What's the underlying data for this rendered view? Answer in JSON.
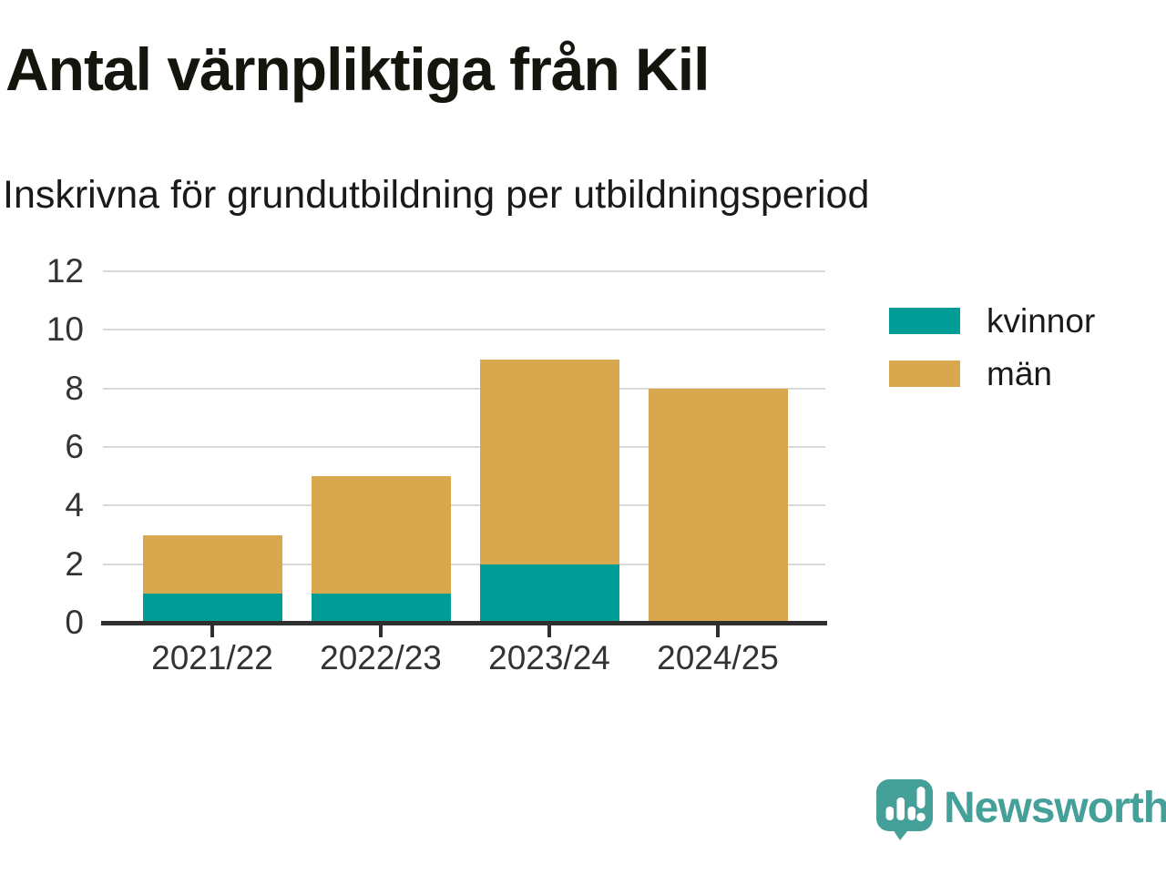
{
  "header": {
    "title": "Antal värnpliktiga från Kil",
    "subtitle": "Inskrivna för grundutbildning per utbildningsperiod"
  },
  "chart_data": {
    "type": "bar",
    "stacked": true,
    "title": "Antal värnpliktiga från Kil",
    "subtitle": "Inskrivna för grundutbildning per utbildningsperiod",
    "categories": [
      "2021/22",
      "2022/23",
      "2023/24",
      "2024/25"
    ],
    "series": [
      {
        "name": "kvinnor",
        "color": "#009d96",
        "values": [
          1,
          1,
          2,
          0
        ]
      },
      {
        "name": "män",
        "color": "#d9a84e",
        "values": [
          2,
          4,
          7,
          8
        ]
      }
    ],
    "totals": [
      3,
      5,
      9,
      8
    ],
    "xlabel": "",
    "ylabel": "",
    "ylim": [
      0,
      12
    ],
    "yticks": [
      0,
      2,
      4,
      6,
      8,
      10,
      12
    ],
    "grid": "horizontal",
    "gridline_color": "#d9d9d9",
    "axis_color": "#2f2f2f",
    "legend_position": "right"
  },
  "footer": {
    "brand": "Newsworthy",
    "brand_color": "#45a099",
    "logo": "newsworthy-speech-bubble-chart-logo"
  }
}
